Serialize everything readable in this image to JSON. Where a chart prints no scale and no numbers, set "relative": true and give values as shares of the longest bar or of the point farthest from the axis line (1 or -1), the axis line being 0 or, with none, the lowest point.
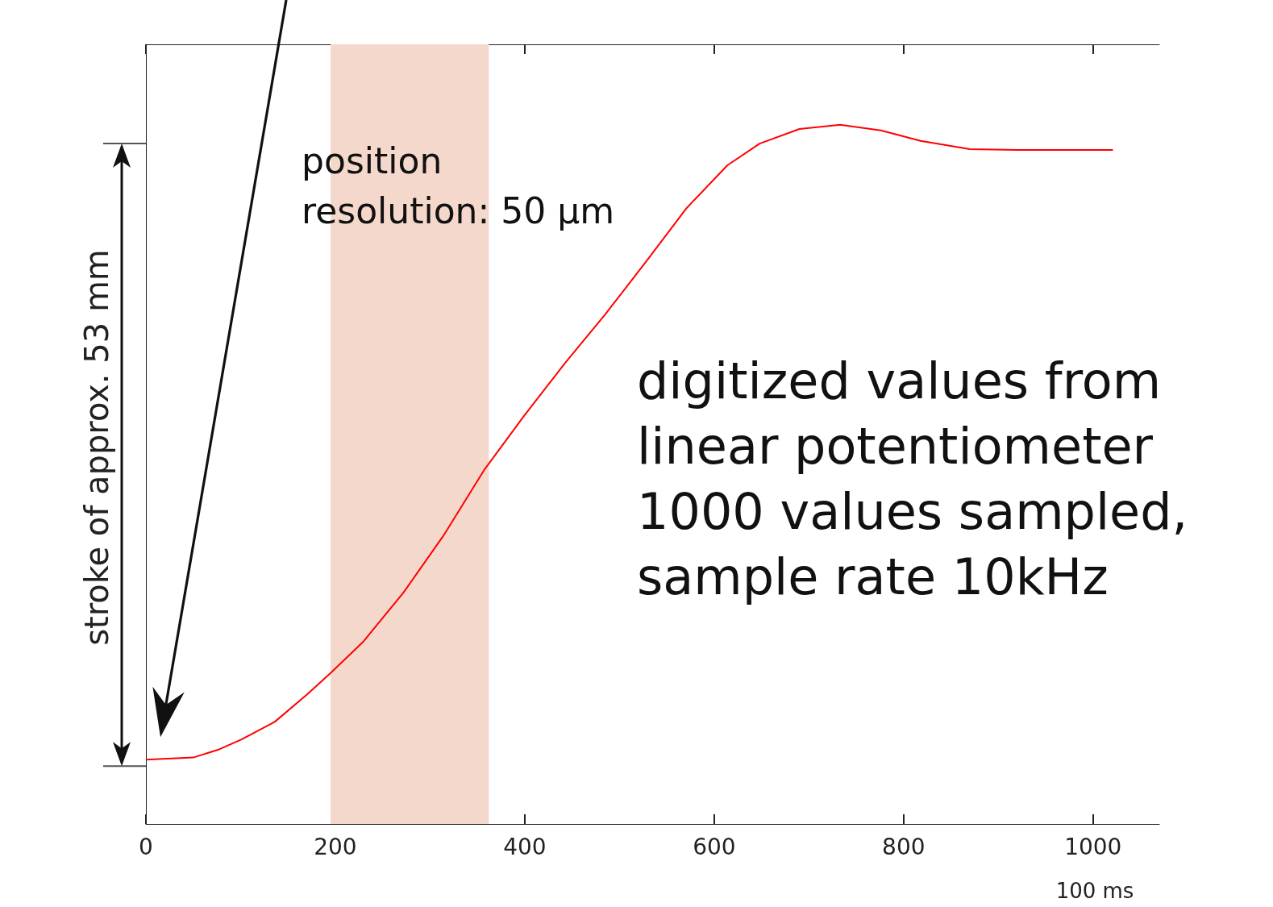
{
  "chart_data": {
    "type": "line",
    "relative": true,
    "xlabel": "100 ms",
    "ylabel": "stroke of approx. 53 mm",
    "x": [
      0,
      50,
      76,
      101,
      136,
      170,
      195,
      229,
      272,
      314,
      357,
      400,
      443,
      485,
      528,
      571,
      614,
      648,
      690,
      733,
      776,
      818,
      870,
      921,
      1021
    ],
    "series": [
      {
        "color": "#ff0000",
        "values": [
          0.092,
          0.095,
          0.106,
          0.121,
          0.146,
          0.185,
          0.216,
          0.26,
          0.331,
          0.412,
          0.506,
          0.585,
          0.66,
          0.729,
          0.804,
          0.881,
          0.942,
          0.973,
          0.994,
          1,
          0.992,
          0.977,
          0.965,
          0.964,
          0.964
        ]
      }
    ],
    "xlim": [
      0,
      1070
    ],
    "xticks": [
      0,
      200,
      400,
      600,
      800,
      1000
    ],
    "bands": [
      {
        "axis": "x",
        "from": 195,
        "to": 362,
        "color": "#f5d8cc"
      }
    ],
    "annotations": [
      "position\nresolution: 50 µm",
      "digitized values from\nlinear potentiometer\n1000 values sampled,\nsample rate 10kHz"
    ],
    "tick_labels": "x",
    "grid": false,
    "marker": "none",
    "line_style": "solid"
  }
}
